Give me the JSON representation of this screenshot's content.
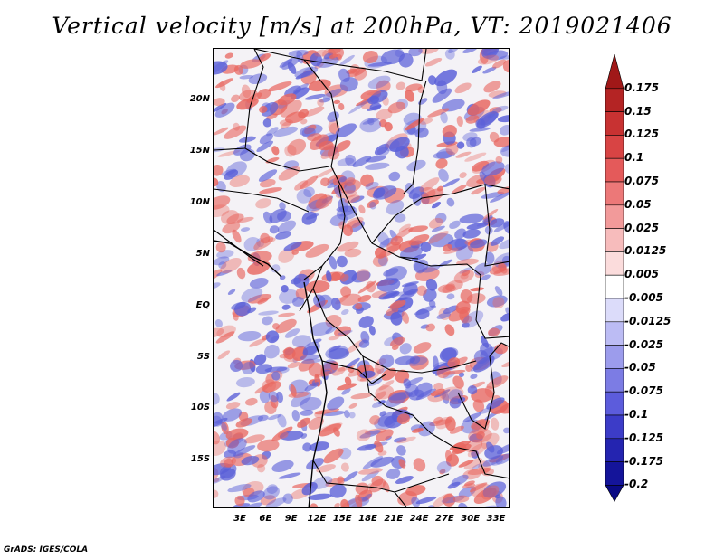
{
  "title": "Vertical velocity [m/s] at 200hPa, VT: 2019021406",
  "credit": "GrADS: IGES/COLA",
  "map": {
    "lat_labels": [
      "20N",
      "15N",
      "10N",
      "5N",
      "EQ",
      "5S",
      "10S",
      "15S"
    ],
    "lon_labels": [
      "3E",
      "6E",
      "9E",
      "12E",
      "15E",
      "18E",
      "21E",
      "24E",
      "27E",
      "30E",
      "33E"
    ],
    "colors": {
      "positive": "#e8665f",
      "negative": "#5a5fd8",
      "neutral": "#f4f2f6"
    }
  },
  "colorbar": {
    "labels": [
      "0.175",
      "0.15",
      "0.125",
      "0.1",
      "0.075",
      "0.05",
      "0.025",
      "0.0125",
      "0.005",
      "-0.005",
      "-0.0125",
      "-0.025",
      "-0.05",
      "-0.075",
      "-0.1",
      "-0.125",
      "-0.175",
      "-0.2"
    ],
    "colors": [
      "#a01818",
      "#b42424",
      "#c83232",
      "#d84444",
      "#e45a5a",
      "#ec7878",
      "#f29a9a",
      "#f7bcbc",
      "#fbdcdc",
      "#ffffff",
      "#dcdcfa",
      "#bcbcf4",
      "#9c9cec",
      "#7c7ce4",
      "#5c5cdc",
      "#3c3cc8",
      "#2424b0",
      "#14149a",
      "#0a0a84"
    ]
  }
}
